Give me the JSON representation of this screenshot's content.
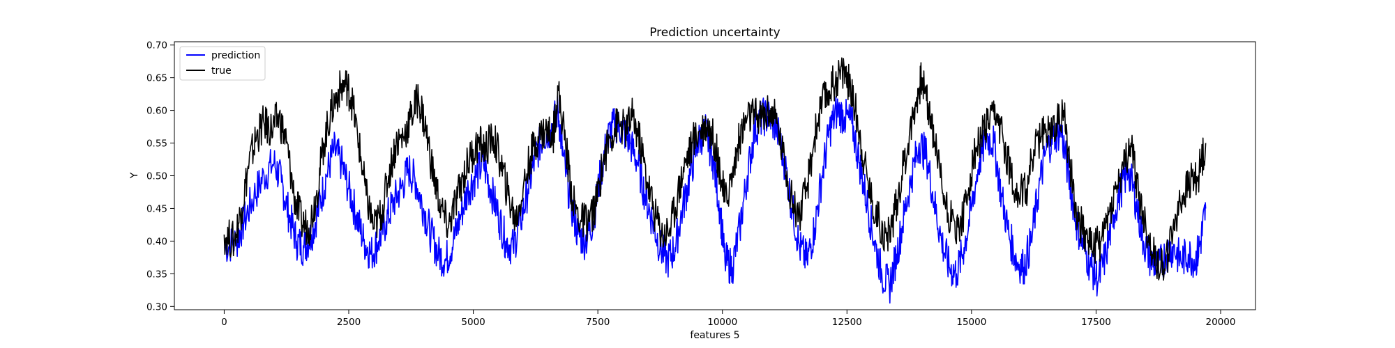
{
  "chart_data": {
    "type": "line",
    "title": "Prediction uncertainty",
    "xlabel": "features 5",
    "ylabel": "Y",
    "xlim": [
      -1000,
      20700
    ],
    "ylim": [
      0.295,
      0.705
    ],
    "xticks": [
      0,
      2500,
      5000,
      7500,
      10000,
      12500,
      15000,
      17500,
      20000
    ],
    "xtick_labels": [
      "0",
      "2500",
      "5000",
      "7500",
      "10000",
      "12500",
      "15000",
      "17500",
      "20000"
    ],
    "yticks": [
      0.3,
      0.35,
      0.4,
      0.45,
      0.5,
      0.55,
      0.6,
      0.65,
      0.7
    ],
    "ytick_labels": [
      "0.30",
      "0.35",
      "0.40",
      "0.45",
      "0.50",
      "0.55",
      "0.60",
      "0.65",
      "0.70"
    ],
    "grid": false,
    "legend_position": "top-left",
    "series": [
      {
        "name": "prediction",
        "color": "#0000ff",
        "x": [
          0,
          250,
          400,
          600,
          800,
          1000,
          1150,
          1300,
          1450,
          1600,
          1750,
          1900,
          2050,
          2200,
          2350,
          2500,
          2650,
          2800,
          2950,
          3100,
          3250,
          3400,
          3550,
          3700,
          3850,
          4000,
          4150,
          4300,
          4450,
          4600,
          4750,
          4900,
          5050,
          5200,
          5350,
          5500,
          5650,
          5800,
          5950,
          6100,
          6250,
          6400,
          6550,
          6700,
          6800,
          6950,
          7100,
          7250,
          7400,
          7550,
          7700,
          7850,
          8000,
          8150,
          8300,
          8450,
          8600,
          8750,
          8900,
          9050,
          9200,
          9350,
          9500,
          9650,
          9800,
          9950,
          10050,
          10200,
          10350,
          10500,
          10650,
          10800,
          10950,
          11100,
          11250,
          11400,
          11550,
          11700,
          11850,
          12000,
          12150,
          12300,
          12450,
          12600,
          12750,
          12900,
          13050,
          13200,
          13350,
          13500,
          13650,
          13800,
          13950,
          14100,
          14250,
          14400,
          14550,
          14700,
          14850,
          15000,
          15150,
          15300,
          15450,
          15600,
          15750,
          15900,
          16050,
          16200,
          16350,
          16500,
          16650,
          16800,
          16950,
          17100,
          17250,
          17400,
          17550,
          17700,
          17850,
          18000,
          18150,
          18300,
          18450,
          18600,
          18750,
          18900,
          19050,
          19200,
          19350,
          19500,
          19600,
          19700
        ],
        "y": [
          0.39,
          0.4,
          0.43,
          0.47,
          0.5,
          0.52,
          0.49,
          0.44,
          0.4,
          0.39,
          0.41,
          0.45,
          0.5,
          0.54,
          0.52,
          0.48,
          0.44,
          0.4,
          0.38,
          0.4,
          0.43,
          0.46,
          0.48,
          0.51,
          0.49,
          0.45,
          0.41,
          0.38,
          0.37,
          0.4,
          0.44,
          0.48,
          0.5,
          0.52,
          0.48,
          0.44,
          0.4,
          0.39,
          0.43,
          0.48,
          0.53,
          0.56,
          0.57,
          0.6,
          0.53,
          0.46,
          0.41,
          0.4,
          0.43,
          0.5,
          0.56,
          0.58,
          0.57,
          0.55,
          0.52,
          0.47,
          0.43,
          0.39,
          0.37,
          0.39,
          0.45,
          0.5,
          0.55,
          0.57,
          0.53,
          0.45,
          0.37,
          0.36,
          0.42,
          0.5,
          0.57,
          0.59,
          0.59,
          0.57,
          0.52,
          0.45,
          0.39,
          0.37,
          0.42,
          0.5,
          0.57,
          0.6,
          0.59,
          0.58,
          0.52,
          0.46,
          0.4,
          0.35,
          0.33,
          0.38,
          0.44,
          0.5,
          0.55,
          0.53,
          0.46,
          0.4,
          0.36,
          0.35,
          0.39,
          0.45,
          0.52,
          0.56,
          0.55,
          0.47,
          0.41,
          0.37,
          0.36,
          0.4,
          0.48,
          0.54,
          0.56,
          0.57,
          0.5,
          0.43,
          0.39,
          0.36,
          0.34,
          0.38,
          0.44,
          0.48,
          0.51,
          0.46,
          0.4,
          0.37,
          0.36,
          0.38,
          0.39,
          0.37,
          0.38,
          0.37,
          0.4,
          0.45
        ]
      },
      {
        "name": "true",
        "color": "#000000",
        "x": [
          0,
          200,
          350,
          500,
          650,
          800,
          950,
          1100,
          1250,
          1400,
          1550,
          1700,
          1850,
          2000,
          2150,
          2300,
          2450,
          2550,
          2700,
          2850,
          3000,
          3150,
          3300,
          3450,
          3600,
          3750,
          3900,
          4050,
          4200,
          4350,
          4500,
          4650,
          4800,
          4950,
          5100,
          5250,
          5400,
          5550,
          5700,
          5850,
          6000,
          6150,
          6300,
          6450,
          6600,
          6700,
          6850,
          7000,
          7150,
          7300,
          7450,
          7600,
          7750,
          7900,
          8050,
          8200,
          8350,
          8500,
          8650,
          8800,
          8950,
          9100,
          9250,
          9400,
          9550,
          9700,
          9850,
          9950,
          10050,
          10200,
          10350,
          10500,
          10650,
          10800,
          10950,
          11100,
          11250,
          11400,
          11550,
          11700,
          11850,
          12000,
          12150,
          12300,
          12450,
          12550,
          12700,
          12850,
          13000,
          13150,
          13300,
          13450,
          13600,
          13750,
          13900,
          14000,
          14150,
          14300,
          14450,
          14600,
          14750,
          14900,
          15050,
          15200,
          15350,
          15500,
          15650,
          15800,
          15950,
          16100,
          16250,
          16400,
          16550,
          16700,
          16850,
          17000,
          17150,
          17300,
          17450,
          17600,
          17750,
          17900,
          18050,
          18200,
          18350,
          18500,
          18650,
          18800,
          18950,
          19100,
          19250,
          19400,
          19550,
          19700
        ],
        "y": [
          0.41,
          0.4,
          0.45,
          0.52,
          0.56,
          0.58,
          0.57,
          0.59,
          0.55,
          0.47,
          0.43,
          0.42,
          0.47,
          0.55,
          0.6,
          0.63,
          0.64,
          0.62,
          0.55,
          0.47,
          0.42,
          0.44,
          0.5,
          0.55,
          0.56,
          0.59,
          0.62,
          0.57,
          0.5,
          0.45,
          0.42,
          0.46,
          0.5,
          0.53,
          0.55,
          0.54,
          0.56,
          0.52,
          0.47,
          0.43,
          0.48,
          0.53,
          0.56,
          0.57,
          0.56,
          0.63,
          0.55,
          0.46,
          0.43,
          0.43,
          0.45,
          0.52,
          0.56,
          0.58,
          0.57,
          0.59,
          0.55,
          0.49,
          0.44,
          0.41,
          0.42,
          0.47,
          0.52,
          0.55,
          0.57,
          0.58,
          0.55,
          0.51,
          0.46,
          0.5,
          0.56,
          0.59,
          0.59,
          0.59,
          0.6,
          0.58,
          0.52,
          0.46,
          0.44,
          0.48,
          0.56,
          0.61,
          0.63,
          0.65,
          0.66,
          0.64,
          0.59,
          0.52,
          0.46,
          0.43,
          0.4,
          0.44,
          0.5,
          0.56,
          0.62,
          0.65,
          0.6,
          0.54,
          0.47,
          0.43,
          0.42,
          0.46,
          0.53,
          0.56,
          0.58,
          0.59,
          0.55,
          0.5,
          0.47,
          0.48,
          0.54,
          0.56,
          0.57,
          0.58,
          0.6,
          0.5,
          0.43,
          0.41,
          0.39,
          0.4,
          0.44,
          0.48,
          0.51,
          0.55,
          0.47,
          0.42,
          0.38,
          0.36,
          0.38,
          0.44,
          0.47,
          0.49,
          0.5,
          0.55
        ]
      }
    ]
  }
}
